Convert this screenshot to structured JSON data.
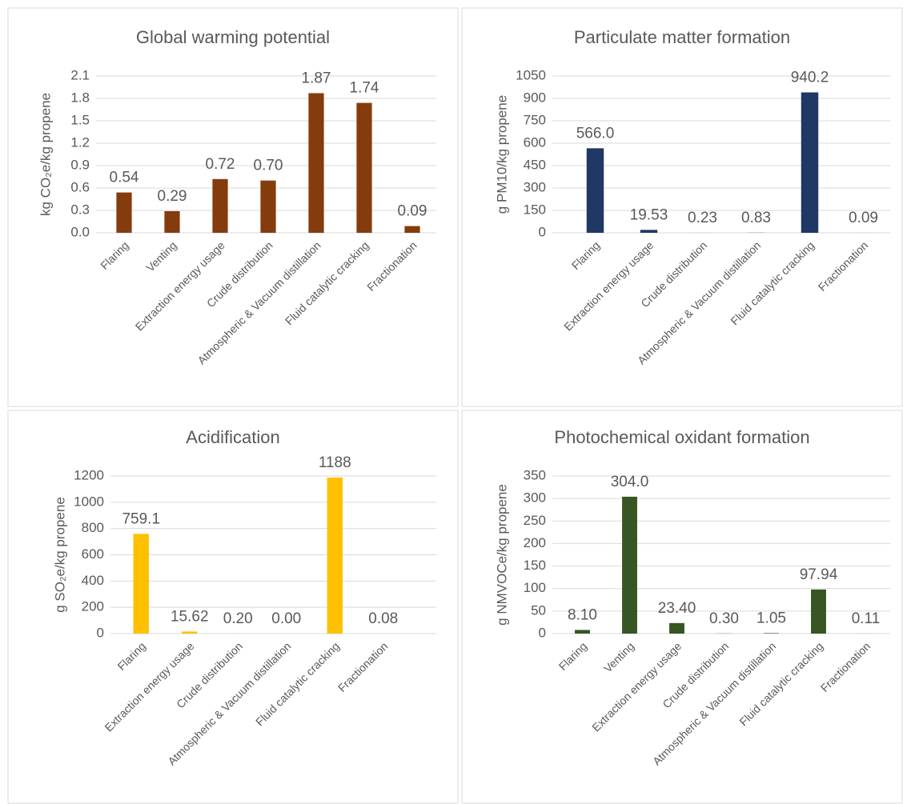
{
  "chart_data": [
    {
      "type": "bar",
      "title": "Global warming potential",
      "y_label": "kg CO₂e/kg propene",
      "categories": [
        "Flaring",
        "Venting",
        "Extraction energy usage",
        "Crude distribution",
        "Atmospheric & Vacuum distillation",
        "Fluid catalytic cracking",
        "Fractionation"
      ],
      "values": [
        0.54,
        0.29,
        0.72,
        0.7,
        1.87,
        1.74,
        0.09
      ],
      "value_labels": [
        "0.54",
        "0.29",
        "0.72",
        "0.70",
        "1.87",
        "1.74",
        "0.09"
      ],
      "color": "#843c0c",
      "ylim": [
        0,
        2.1
      ],
      "yticks": [
        {
          "value": 0,
          "label": "0.0"
        },
        0.3,
        0.6,
        0.9,
        1.2,
        1.5,
        1.8,
        2.1
      ],
      "grid": true
    },
    {
      "type": "bar",
      "title": "Particulate matter formation",
      "y_label": "g PM10/kg propene",
      "categories": [
        "Flaring",
        "Extraction energy usage",
        "Crude distribution",
        "Atmospheric & Vacuum distillation",
        "Fluid catalytic cracking",
        "Fractionation"
      ],
      "values": [
        566.0,
        19.53,
        0.23,
        0.83,
        940.2,
        0.09
      ],
      "value_labels": [
        "566.0",
        "19.53",
        "0.23",
        "0.83",
        "940.2",
        "0.09"
      ],
      "color": "#203864",
      "ylim": [
        0,
        1050
      ],
      "yticks": [
        0,
        150,
        300,
        450,
        600,
        750,
        900,
        1050
      ],
      "grid": true
    },
    {
      "type": "bar",
      "title": "Acidification",
      "y_label": "g SO₂e/kg propene",
      "categories": [
        "Flaring",
        "Extraction energy usage",
        "Crude distribution",
        "Atmospheric & Vacuum distillation",
        "Fluid catalytic cracking",
        "Fractionation"
      ],
      "values": [
        759.1,
        15.62,
        0.2,
        0.0,
        1188,
        0.08
      ],
      "value_labels": [
        "759.1",
        "15.62",
        "0.20",
        "0.00",
        "1188",
        "0.08"
      ],
      "color": "#ffc000",
      "ylim": [
        0,
        1200
      ],
      "yticks": [
        0,
        200,
        400,
        600,
        800,
        1000,
        1200
      ],
      "grid": true
    },
    {
      "type": "bar",
      "title": "Photochemical oxidant formation",
      "y_label": "g NMVOCe/kg propene",
      "categories": [
        "Flaring",
        "Venting",
        "Extraction energy usage",
        "Crude distribution",
        "Atmospheric & Vacuum distillation",
        "Fluid catalytic cracking",
        "Fractionation"
      ],
      "values": [
        8.1,
        304.0,
        23.4,
        0.3,
        1.05,
        97.94,
        0.11
      ],
      "value_labels": [
        "8.10",
        "304.0",
        "23.40",
        "0.30",
        "1.05",
        "97.94",
        "0.11"
      ],
      "color": "#375623",
      "ylim": [
        0,
        350
      ],
      "yticks": [
        0,
        50,
        100,
        150,
        200,
        250,
        300,
        350
      ],
      "grid": true
    }
  ]
}
